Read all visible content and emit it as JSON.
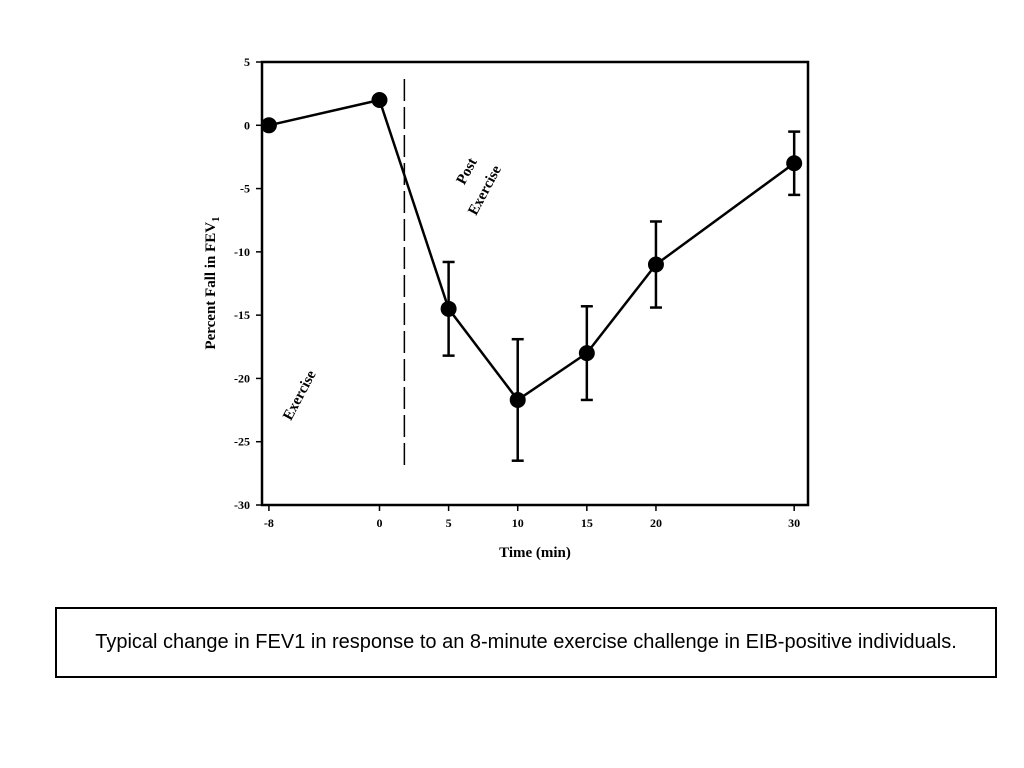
{
  "caption": "Typical change in FEV1 in response to an 8-minute exercise challenge in EIB-positive individuals.",
  "chart_data": {
    "type": "line",
    "xlabel": "Time (min)",
    "ylabel_main": "Percent Fall in FEV",
    "ylabel_subscript": "1",
    "xticks": [
      -8,
      0,
      5,
      10,
      15,
      20,
      30
    ],
    "yticks": [
      5,
      0,
      -5,
      -10,
      -15,
      -20,
      -25,
      -30
    ],
    "xlim": [
      -8.5,
      31
    ],
    "ylim": [
      -30,
      5
    ],
    "grid": false,
    "series": [
      {
        "x": [
          -8,
          0,
          5,
          10,
          15,
          20,
          30
        ],
        "y": [
          0,
          2,
          -14.5,
          -21.7,
          -18,
          -11,
          -3
        ],
        "error": [
          null,
          null,
          3.7,
          4.8,
          3.7,
          3.4,
          2.5
        ]
      }
    ],
    "divider_x": 1.8,
    "annotations": [
      {
        "text": "Exercise",
        "x": -5.5,
        "y": -21.5,
        "rotate": -62
      },
      {
        "text": "Post",
        "x": 6.6,
        "y": -3.8,
        "rotate": -62
      },
      {
        "text": "Exercise",
        "x": 7.9,
        "y": -5.3,
        "rotate": -62
      }
    ],
    "colors": {
      "line": "#000000",
      "marker": "#000000",
      "axis": "#000000"
    }
  }
}
